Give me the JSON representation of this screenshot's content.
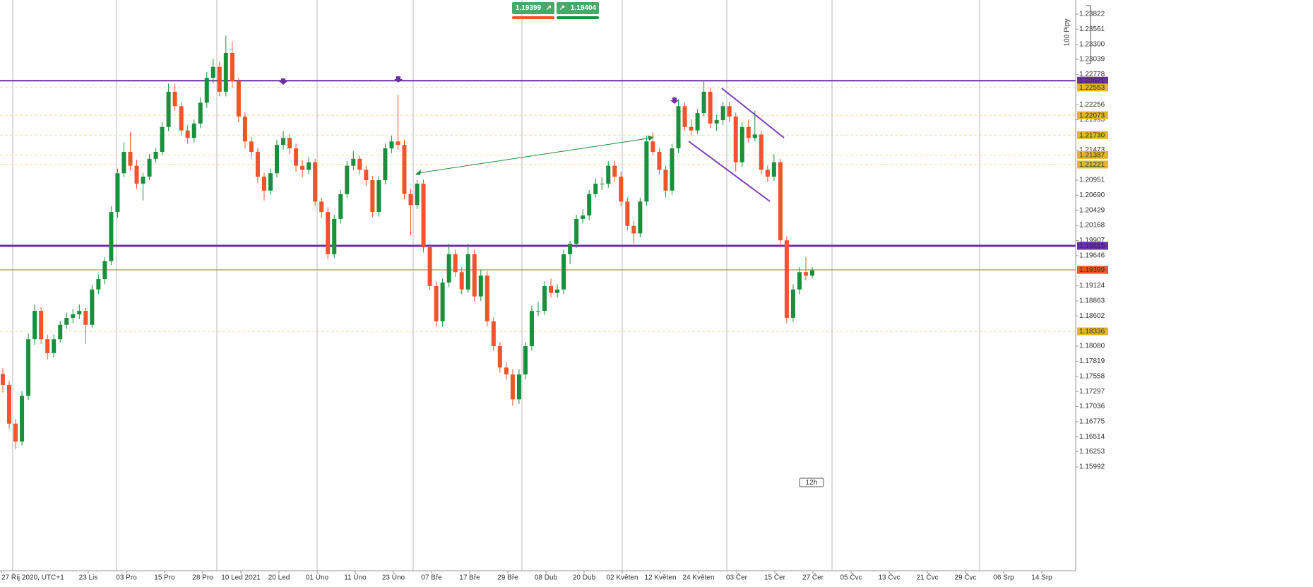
{
  "chart_data": {
    "type": "candlestick",
    "ylim": [
      1.14196,
      1.24066
    ],
    "yticks": [
      1.23822,
      1.23561,
      {
        "value": 1.233,
        "label": "1.23300"
      },
      1.23039,
      1.22778,
      1.22256,
      1.21995,
      1.21473,
      1.20951,
      {
        "value": 1.2069,
        "label": "1.20690"
      },
      1.20429,
      1.20168,
      1.19907,
      1.19646,
      1.19124,
      1.18863,
      1.18602,
      {
        "value": 1.1808,
        "label": "1.18080"
      },
      1.17819,
      1.17558,
      1.17297,
      1.17036,
      1.16775,
      1.16514,
      1.16253,
      1.15992
    ],
    "xtick_labels": [
      "27 Říj 2020, UTC+1",
      "23 Lis",
      "03 Pro",
      "15 Pro",
      "28 Pro",
      "10 Led 2021",
      "20 Led",
      "01 Úno",
      "11 Úno",
      "23 Úno",
      "07 Bře",
      "17 Bře",
      "29 Bře",
      "08 Dub",
      "20 Dub",
      "02 Květen",
      "12 Květen",
      "24 Květen",
      "03 Čer",
      "15 Čer",
      "27 Čer",
      "05 Čvc",
      "13 Čvc",
      "21 Čvc",
      "29 Čvc",
      "06 Srp",
      "14 Srp"
    ],
    "up_color": "#1a8f3c",
    "down_color": "#f0542a",
    "levels": [
      {
        "price": 1.22671,
        "color": "#6b2fa5",
        "style": "solid"
      },
      {
        "price": 1.22553,
        "color": "#e3b824",
        "style": "dashed"
      },
      {
        "price": 1.22073,
        "color": "#e3b824",
        "style": "dashed"
      },
      {
        "price": 1.2173,
        "label": "1.21730",
        "color": "#e3b824",
        "style": "dashed"
      },
      {
        "price": 1.21387,
        "color": "#e3b824",
        "style": "dashed"
      },
      {
        "price": 1.21221,
        "color": "#e3b824",
        "style": "dashed"
      },
      {
        "price": 1.19815,
        "color": "#6b2fa5",
        "style": "bold"
      },
      {
        "price": 1.19399,
        "color": "#f0542a",
        "style": "solid"
      },
      {
        "price": 1.18336,
        "color": "#e3b824",
        "style": "dashed"
      }
    ],
    "ohlc": [
      [
        1.176,
        1.177,
        1.1728,
        1.1741
      ],
      [
        1.1741,
        1.1748,
        1.1665,
        1.1674
      ],
      [
        1.1674,
        1.1682,
        1.163,
        1.1643
      ],
      [
        1.1643,
        1.173,
        1.1636,
        1.1722
      ],
      [
        1.1722,
        1.183,
        1.1715,
        1.182
      ],
      [
        1.182,
        1.188,
        1.181,
        1.1869
      ],
      [
        1.1869,
        1.1875,
        1.1812,
        1.182
      ],
      [
        1.182,
        1.1828,
        1.1785,
        1.1796
      ],
      [
        1.1796,
        1.1828,
        1.1788,
        1.182
      ],
      [
        1.182,
        1.1852,
        1.1814,
        1.1845
      ],
      [
        1.1845,
        1.1866,
        1.1838,
        1.1857
      ],
      [
        1.1857,
        1.1872,
        1.1848,
        1.1863
      ],
      [
        1.1863,
        1.188,
        1.1855,
        1.1869
      ],
      [
        1.1869,
        1.1874,
        1.1812,
        1.1845
      ],
      [
        1.1845,
        1.1914,
        1.184,
        1.1906
      ],
      [
        1.1906,
        1.1932,
        1.1898,
        1.1924
      ],
      [
        1.1924,
        1.1962,
        1.1915,
        1.1955
      ],
      [
        1.1955,
        1.205,
        1.1948,
        1.204
      ],
      [
        1.204,
        1.2115,
        1.203,
        1.2107
      ],
      [
        1.2107,
        1.216,
        1.21,
        1.2144
      ],
      [
        1.2144,
        1.2178,
        1.2112,
        1.212
      ],
      [
        1.212,
        1.213,
        1.208,
        1.2089
      ],
      [
        1.2089,
        1.2108,
        1.206,
        1.2101
      ],
      [
        1.2101,
        1.214,
        1.2095,
        1.2132
      ],
      [
        1.2132,
        1.215,
        1.2125,
        1.2144
      ],
      [
        1.2144,
        1.2195,
        1.2138,
        1.2187
      ],
      [
        1.2187,
        1.2262,
        1.218,
        1.2248
      ],
      [
        1.2248,
        1.2262,
        1.2215,
        1.2223
      ],
      [
        1.2223,
        1.223,
        1.2172,
        1.2181
      ],
      [
        1.2181,
        1.219,
        1.2158,
        1.2168
      ],
      [
        1.2168,
        1.22,
        1.216,
        1.2193
      ],
      [
        1.2193,
        1.2238,
        1.2185,
        1.2229
      ],
      [
        1.2229,
        1.2282,
        1.222,
        1.2272
      ],
      [
        1.2272,
        1.2305,
        1.2262,
        1.2291
      ],
      [
        1.2291,
        1.23,
        1.224,
        1.2248
      ],
      [
        1.2248,
        1.2345,
        1.224,
        1.2315
      ],
      [
        1.2315,
        1.2335,
        1.2255,
        1.2266
      ],
      [
        1.2266,
        1.2272,
        1.2195,
        1.2205
      ],
      [
        1.2205,
        1.2212,
        1.215,
        1.2162
      ],
      [
        1.2162,
        1.217,
        1.2132,
        1.2144
      ],
      [
        1.2144,
        1.215,
        1.209,
        1.2101
      ],
      [
        1.2101,
        1.2108,
        1.206,
        1.2077
      ],
      [
        1.2077,
        1.2115,
        1.207,
        1.2107
      ],
      [
        1.2107,
        1.2165,
        1.21,
        1.2156
      ],
      [
        1.2156,
        1.218,
        1.2148,
        1.2168
      ],
      [
        1.2168,
        1.2174,
        1.214,
        1.215
      ],
      [
        1.215,
        1.2158,
        1.211,
        1.212
      ],
      [
        1.212,
        1.213,
        1.21,
        1.2113
      ],
      [
        1.2113,
        1.2135,
        1.2105,
        1.2126
      ],
      [
        1.2126,
        1.2132,
        1.205,
        1.2058
      ],
      [
        1.2058,
        1.2065,
        1.203,
        1.204
      ],
      [
        1.204,
        1.2048,
        1.1958,
        1.1967
      ],
      [
        1.1967,
        1.2035,
        1.196,
        1.2028
      ],
      [
        1.2028,
        1.2078,
        1.202,
        1.2071
      ],
      [
        1.2071,
        1.2128,
        1.2065,
        1.212
      ],
      [
        1.212,
        1.2145,
        1.2112,
        1.2132
      ],
      [
        1.2132,
        1.2138,
        1.2105,
        1.2113
      ],
      [
        1.2113,
        1.212,
        1.2085,
        1.2095
      ],
      [
        1.2095,
        1.2102,
        1.203,
        1.204
      ],
      [
        1.204,
        1.2102,
        1.2032,
        1.2095
      ],
      [
        1.2095,
        1.2158,
        1.2088,
        1.215
      ],
      [
        1.215,
        1.2172,
        1.2142,
        1.2162
      ],
      [
        1.2162,
        1.2243,
        1.2148,
        1.2156
      ],
      [
        1.2156,
        1.2165,
        1.2062,
        1.2071
      ],
      [
        1.2071,
        1.208,
        1.2,
        1.2052
      ],
      [
        1.2052,
        1.2095,
        1.2045,
        1.2089
      ],
      [
        1.2089,
        1.2096,
        1.197,
        1.1979
      ],
      [
        1.1979,
        1.1985,
        1.1905,
        1.1912
      ],
      [
        1.1912,
        1.192,
        1.1842,
        1.1851
      ],
      [
        1.1851,
        1.1925,
        1.1842,
        1.1918
      ],
      [
        1.1918,
        1.1985,
        1.191,
        1.1967
      ],
      [
        1.1967,
        1.1975,
        1.1928,
        1.1936
      ],
      [
        1.1936,
        1.1945,
        1.1898,
        1.1906
      ],
      [
        1.1906,
        1.1985,
        1.19,
        1.1967
      ],
      [
        1.1967,
        1.1975,
        1.1885,
        1.1894
      ],
      [
        1.1894,
        1.194,
        1.1886,
        1.193
      ],
      [
        1.193,
        1.1938,
        1.1842,
        1.1851
      ],
      [
        1.1851,
        1.1858,
        1.18,
        1.1808
      ],
      [
        1.1808,
        1.1815,
        1.1762,
        1.1771
      ],
      [
        1.1771,
        1.178,
        1.175,
        1.1759
      ],
      [
        1.1759,
        1.1768,
        1.1705,
        1.1716
      ],
      [
        1.1716,
        1.1768,
        1.1708,
        1.1759
      ],
      [
        1.1759,
        1.1815,
        1.175,
        1.1808
      ],
      [
        1.1808,
        1.1878,
        1.18,
        1.1869
      ],
      [
        1.1869,
        1.1885,
        1.186,
        1.1869
      ],
      [
        1.1869,
        1.192,
        1.1862,
        1.1912
      ],
      [
        1.1912,
        1.1925,
        1.1892,
        1.19
      ],
      [
        1.19,
        1.1915,
        1.1892,
        1.1906
      ],
      [
        1.1906,
        1.1975,
        1.1898,
        1.1967
      ],
      [
        1.1967,
        1.199,
        1.195,
        1.1985
      ],
      [
        1.1985,
        1.2035,
        1.1978,
        1.2028
      ],
      [
        1.2028,
        1.2045,
        1.202,
        1.2034
      ],
      [
        1.2034,
        1.2078,
        1.2026,
        1.2071
      ],
      [
        1.2071,
        1.2098,
        1.2065,
        1.2089
      ],
      [
        1.2089,
        1.21,
        1.2078,
        1.2089
      ],
      [
        1.2089,
        1.2128,
        1.2082,
        1.212
      ],
      [
        1.212,
        1.2128,
        1.2092,
        1.2101
      ],
      [
        1.2101,
        1.211,
        1.205,
        1.2058
      ],
      [
        1.2058,
        1.2065,
        1.2008,
        1.2016
      ],
      [
        1.2016,
        1.2025,
        1.1985,
        1.2003
      ],
      [
        1.2003,
        1.2065,
        1.1996,
        1.2058
      ],
      [
        1.2058,
        1.2172,
        1.205,
        1.2162
      ],
      [
        1.2162,
        1.2178,
        1.2138,
        1.2144
      ],
      [
        1.2144,
        1.215,
        1.2105,
        1.2113
      ],
      [
        1.2113,
        1.212,
        1.2065,
        1.2077
      ],
      [
        1.2077,
        1.2158,
        1.207,
        1.215
      ],
      [
        1.215,
        1.2235,
        1.2142,
        1.2223
      ],
      [
        1.2223,
        1.223,
        1.218,
        1.2187
      ],
      [
        1.2187,
        1.22,
        1.2172,
        1.2181
      ],
      [
        1.2181,
        1.2218,
        1.2175,
        1.2211
      ],
      [
        1.2211,
        1.2268,
        1.2205,
        1.2248
      ],
      [
        1.2248,
        1.2255,
        1.2185,
        1.2193
      ],
      [
        1.2193,
        1.2208,
        1.218,
        1.2199
      ],
      [
        1.2199,
        1.223,
        1.219,
        1.2223
      ],
      [
        1.2223,
        1.223,
        1.2195,
        1.2205
      ],
      [
        1.2205,
        1.2212,
        1.211,
        1.2126
      ],
      [
        1.2126,
        1.2195,
        1.2118,
        1.2187
      ],
      [
        1.2187,
        1.22,
        1.216,
        1.2168
      ],
      [
        1.2168,
        1.2215,
        1.2162,
        1.2174
      ],
      [
        1.2174,
        1.218,
        1.2105,
        1.2113
      ],
      [
        1.2113,
        1.212,
        1.2092,
        1.2101
      ],
      [
        1.2101,
        1.214,
        1.2094,
        1.2126
      ],
      [
        1.2126,
        1.2132,
        1.1982,
        1.1991
      ],
      [
        1.1991,
        1.1998,
        1.1848,
        1.1857
      ],
      [
        1.1857,
        1.1915,
        1.185,
        1.1906
      ],
      [
        1.1906,
        1.1945,
        1.1898,
        1.1936
      ],
      [
        1.1936,
        1.1962,
        1.1922,
        1.193
      ],
      [
        1.193,
        1.1945,
        1.1925,
        1.1939
      ]
    ],
    "scale_label": "100 Pipy",
    "timeframe": "12h"
  },
  "trade_panel": {
    "sell": "1.19399",
    "buy": "1.19404"
  }
}
